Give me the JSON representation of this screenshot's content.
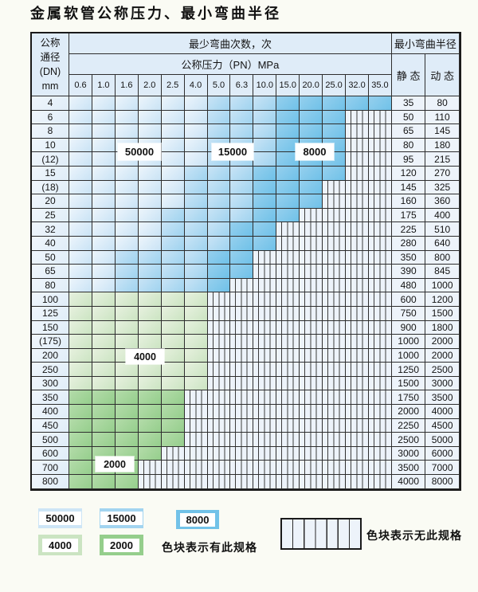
{
  "title": "金属软管公称压力、最小弯曲半径",
  "table": {
    "header": {
      "dn_lines": [
        "公称",
        "通径",
        "(DN)",
        "mm"
      ],
      "cycles_label": "最少弯曲次数，次",
      "pressure_label": "公称压力（PN）MPa",
      "radius_label": "最小弯曲半径",
      "static_label": "静 态",
      "dynamic_label": "动 态",
      "pressures": [
        "0.6",
        "1.0",
        "1.6",
        "2.0",
        "2.5",
        "4.0",
        "5.0",
        "6.3",
        "10.0",
        "15.0",
        "20.0",
        "25.0",
        "32.0",
        "35.0"
      ]
    },
    "tier_codes": {
      "L": "50000次 浅蓝",
      "M": "15000次 中蓝",
      "D": "8000次 深蓝",
      "g": "4000次 浅绿",
      "G": "2000次 深绿",
      "X": "无此规格(竖线网纹)"
    },
    "overlays": [
      {
        "label": "50000"
      },
      {
        "label": "15000"
      },
      {
        "label": "8000"
      },
      {
        "label": "4000"
      },
      {
        "label": "2000"
      }
    ],
    "rows": [
      {
        "dn": "4",
        "cells": "LLLLLLMMMDDDDD",
        "static": "35",
        "dynamic": "80"
      },
      {
        "dn": "6",
        "cells": "LLLLLLMMMDDDXX",
        "static": "50",
        "dynamic": "110"
      },
      {
        "dn": "8",
        "cells": "LLLLLLMMMDDDXX",
        "static": "65",
        "dynamic": "145"
      },
      {
        "dn": "10",
        "cells": "LLLLLLMMMDDDXX",
        "static": "80",
        "dynamic": "180"
      },
      {
        "dn": "(12)",
        "cells": "LLLLLLMMMDDDXX",
        "static": "95",
        "dynamic": "215"
      },
      {
        "dn": "15",
        "cells": "LLLLLMMMDDDDXX",
        "static": "120",
        "dynamic": "270"
      },
      {
        "dn": "(18)",
        "cells": "LLLLLMMMDDDXXX",
        "static": "145",
        "dynamic": "325"
      },
      {
        "dn": "20",
        "cells": "LLLLLMMMDDDXXX",
        "static": "160",
        "dynamic": "360"
      },
      {
        "dn": "25",
        "cells": "LLLLMMMMDDXXXX",
        "static": "175",
        "dynamic": "400"
      },
      {
        "dn": "32",
        "cells": "LLLLMMMDDXXXXX",
        "static": "225",
        "dynamic": "510"
      },
      {
        "dn": "40",
        "cells": "LLLLMMMDDXXXXX",
        "static": "280",
        "dynamic": "640"
      },
      {
        "dn": "50",
        "cells": "LLMMMMDDXXXXXX",
        "static": "350",
        "dynamic": "800"
      },
      {
        "dn": "65",
        "cells": "LLMMMMDDXXXXXX",
        "static": "390",
        "dynamic": "845"
      },
      {
        "dn": "80",
        "cells": "LLMMMMDXXXXXXX",
        "static": "480",
        "dynamic": "1000"
      },
      {
        "dn": "100",
        "cells": "ggggggXXXXXXXX",
        "static": "600",
        "dynamic": "1200"
      },
      {
        "dn": "125",
        "cells": "ggggggXXXXXXXX",
        "static": "750",
        "dynamic": "1500"
      },
      {
        "dn": "150",
        "cells": "ggggggXXXXXXXX",
        "static": "900",
        "dynamic": "1800"
      },
      {
        "dn": "(175)",
        "cells": "ggggggXXXXXXXX",
        "static": "1000",
        "dynamic": "2000"
      },
      {
        "dn": "200",
        "cells": "ggggggXXXXXXXX",
        "static": "1000",
        "dynamic": "2000"
      },
      {
        "dn": "250",
        "cells": "ggggggXXXXXXXX",
        "static": "1250",
        "dynamic": "2500"
      },
      {
        "dn": "300",
        "cells": "ggggggXXXXXXXX",
        "static": "1500",
        "dynamic": "3000"
      },
      {
        "dn": "350",
        "cells": "GGGGGXXXXXXXXX",
        "static": "1750",
        "dynamic": "3500"
      },
      {
        "dn": "400",
        "cells": "GGGGGXXXXXXXXX",
        "static": "2000",
        "dynamic": "4000"
      },
      {
        "dn": "450",
        "cells": "GGGGGXXXXXXXXX",
        "static": "2250",
        "dynamic": "4500"
      },
      {
        "dn": "500",
        "cells": "GGGGGXXXXXXXXX",
        "static": "2500",
        "dynamic": "5000"
      },
      {
        "dn": "600",
        "cells": "GGGGXXXXXXXXXX",
        "static": "3000",
        "dynamic": "6000"
      },
      {
        "dn": "700",
        "cells": "GGGXXXXXXXXXXX",
        "static": "3500",
        "dynamic": "7000"
      },
      {
        "dn": "800",
        "cells": "GGGXXXXXXXXXXX",
        "static": "4000",
        "dynamic": "8000"
      }
    ]
  },
  "legend": {
    "swatches": [
      {
        "label": "50000",
        "tier": "L",
        "color": "#cde5f6"
      },
      {
        "label": "15000",
        "tier": "M",
        "color": "#a2d4f0"
      },
      {
        "label": "8000",
        "tier": "D",
        "color": "#72c2e8"
      },
      {
        "label": "4000",
        "tier": "g",
        "color": "#cbe4c2"
      },
      {
        "label": "2000",
        "tier": "G",
        "color": "#95ce8c"
      }
    ],
    "has_spec_note": "色块表示有此规格",
    "no_spec_note": "色块表示无此规格"
  },
  "colors": {
    "tier_50000": "#cde5f6",
    "tier_15000": "#a2d4f0",
    "tier_8000": "#72c2e8",
    "tier_4000": "#cbe4c2",
    "tier_2000": "#95ce8c",
    "no_spec_bg": "#edf3fa",
    "grid_line": "#2e2e2e",
    "header_bg": "#dfecf8"
  }
}
